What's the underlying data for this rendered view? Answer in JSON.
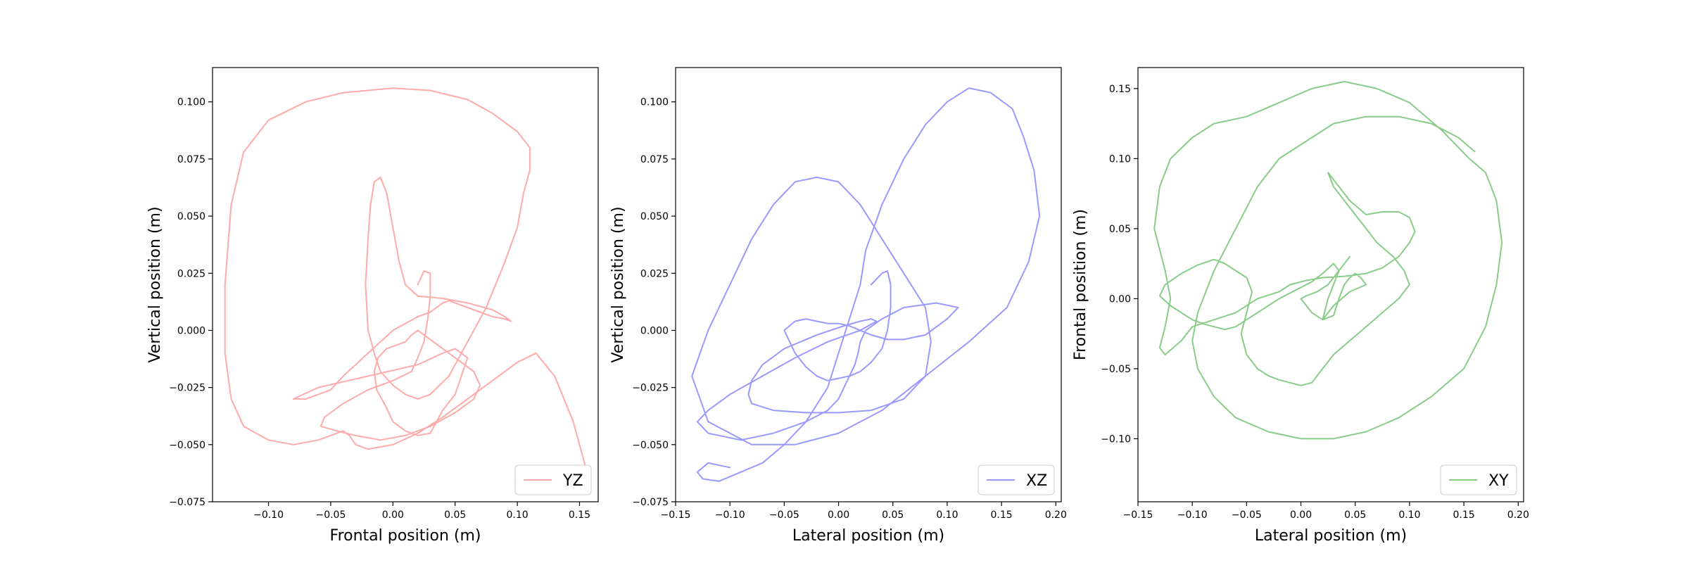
{
  "chart_data": [
    {
      "type": "line",
      "xlabel": "Frontal position (m)",
      "ylabel": "Vertical position  (m)",
      "xlim": [
        -0.145,
        0.165
      ],
      "ylim": [
        -0.075,
        0.115
      ],
      "xticks": [
        -0.1,
        -0.05,
        0.0,
        0.05,
        0.1,
        0.15
      ],
      "xtick_labels": [
        "−0.10",
        "−0.05",
        "0.00",
        "0.05",
        "0.10",
        "0.15"
      ],
      "yticks": [
        -0.075,
        -0.05,
        -0.025,
        0.0,
        0.025,
        0.05,
        0.075,
        0.1
      ],
      "ytick_labels": [
        "−0.075",
        "−0.050",
        "−0.025",
        "0.000",
        "0.025",
        "0.050",
        "0.075",
        "0.100"
      ],
      "legend": "lower right",
      "grid": false,
      "series": [
        {
          "name": "YZ",
          "color": "#ffaaaa",
          "x": [
            0.02,
            0.025,
            0.03,
            0.03,
            0.028,
            0.025,
            0.02,
            0.015,
            0.0,
            -0.02,
            -0.04,
            -0.055,
            -0.058,
            -0.045,
            -0.03,
            -0.01,
            0.01,
            0.03,
            0.05,
            0.065,
            0.07,
            0.065,
            0.05,
            0.035,
            0.025,
            0.02,
            0.015,
            0.01,
            -0.005,
            -0.012,
            -0.015,
            -0.013,
            -0.005,
            0.0,
            0.01,
            0.02,
            0.03,
            0.035,
            0.04,
            0.05,
            0.055,
            0.06,
            0.05,
            0.04,
            0.02,
            -0.02,
            -0.06,
            -0.08,
            -0.07,
            -0.05,
            -0.04,
            -0.03,
            -0.02,
            -0.01,
            0.0,
            0.01,
            0.02,
            0.03,
            0.035,
            0.04,
            0.045,
            0.05,
            0.06,
            0.07,
            0.08,
            0.09,
            0.095,
            0.09,
            0.08,
            0.06,
            0.04,
            0.02,
            0.01,
            0.005,
            0.0,
            -0.005,
            -0.01,
            -0.015,
            -0.018,
            -0.02,
            -0.022,
            -0.02,
            -0.015,
            -0.01,
            0.0,
            0.01,
            0.02,
            0.03,
            0.045,
            0.06,
            0.075,
            0.09,
            0.1,
            0.105,
            0.11,
            0.11,
            0.11,
            0.1,
            0.08,
            0.06,
            0.03,
            0.0,
            -0.04,
            -0.07,
            -0.1,
            -0.12,
            -0.13,
            -0.135,
            -0.135,
            -0.13,
            -0.12,
            -0.1,
            -0.08,
            -0.06,
            -0.045,
            -0.04,
            -0.035,
            -0.03,
            -0.02,
            0.0,
            0.02,
            0.04,
            0.06,
            0.08,
            0.1,
            0.115,
            0.13,
            0.145,
            0.155
          ],
          "y": [
            0.02,
            0.026,
            0.025,
            0.015,
            0.005,
            -0.005,
            -0.012,
            -0.018,
            -0.022,
            -0.026,
            -0.032,
            -0.038,
            -0.042,
            -0.044,
            -0.046,
            -0.048,
            -0.046,
            -0.042,
            -0.036,
            -0.03,
            -0.024,
            -0.018,
            -0.012,
            -0.006,
            -0.002,
            0.0,
            -0.002,
            -0.005,
            -0.008,
            -0.012,
            -0.018,
            -0.026,
            -0.034,
            -0.04,
            -0.044,
            -0.046,
            -0.045,
            -0.04,
            -0.035,
            -0.028,
            -0.02,
            -0.012,
            -0.008,
            -0.01,
            -0.015,
            -0.02,
            -0.025,
            -0.03,
            -0.03,
            -0.026,
            -0.02,
            -0.015,
            -0.01,
            -0.005,
            0.0,
            0.003,
            0.006,
            0.008,
            0.01,
            0.012,
            0.013,
            0.012,
            0.01,
            0.008,
            0.006,
            0.005,
            0.004,
            0.006,
            0.009,
            0.012,
            0.014,
            0.015,
            0.02,
            0.03,
            0.045,
            0.06,
            0.067,
            0.065,
            0.055,
            0.04,
            0.02,
            0.0,
            -0.01,
            -0.018,
            -0.024,
            -0.028,
            -0.03,
            -0.028,
            -0.02,
            -0.005,
            0.01,
            0.03,
            0.045,
            0.06,
            0.07,
            0.078,
            0.08,
            0.087,
            0.095,
            0.101,
            0.105,
            0.106,
            0.104,
            0.1,
            0.092,
            0.078,
            0.055,
            0.02,
            -0.01,
            -0.03,
            -0.042,
            -0.048,
            -0.05,
            -0.048,
            -0.045,
            -0.044,
            -0.046,
            -0.05,
            -0.052,
            -0.05,
            -0.045,
            -0.038,
            -0.03,
            -0.022,
            -0.014,
            -0.01,
            -0.02,
            -0.04,
            -0.06
          ]
        }
      ]
    },
    {
      "type": "line",
      "xlabel": "Lateral position (m)",
      "ylabel": "Vertical position (m)",
      "xlim": [
        -0.15,
        0.205
      ],
      "ylim": [
        -0.075,
        0.115
      ],
      "xticks": [
        -0.15,
        -0.1,
        -0.05,
        0.0,
        0.05,
        0.1,
        0.15,
        0.2
      ],
      "xtick_labels": [
        "−0.15",
        "−0.10",
        "−0.05",
        "0.00",
        "0.05",
        "0.10",
        "0.15",
        "0.20"
      ],
      "yticks": [
        -0.075,
        -0.05,
        -0.025,
        0.0,
        0.025,
        0.05,
        0.075,
        0.1
      ],
      "ytick_labels": [
        "−0.075",
        "−0.050",
        "−0.025",
        "0.000",
        "0.025",
        "0.050",
        "0.075",
        "0.100"
      ],
      "legend": "lower right",
      "grid": false,
      "series": [
        {
          "name": "XZ",
          "color": "#9999ff",
          "x": [
            0.03,
            0.04,
            0.045,
            0.048,
            0.048,
            0.045,
            0.04,
            0.03,
            0.02,
            0.01,
            0.0,
            -0.01,
            -0.02,
            -0.03,
            -0.04,
            -0.045,
            -0.05,
            -0.04,
            -0.03,
            -0.02,
            -0.01,
            0.0,
            0.01,
            0.02,
            0.03,
            0.045,
            0.06,
            0.08,
            0.1,
            0.11,
            0.09,
            0.06,
            0.04,
            0.025,
            0.02,
            0.018,
            0.015,
            0.01,
            0.005,
            0.0,
            -0.01,
            -0.03,
            -0.06,
            -0.09,
            -0.12,
            -0.13,
            -0.12,
            -0.1,
            -0.07,
            -0.04,
            -0.01,
            0.02,
            0.035,
            0.03,
            0.02,
            0.005,
            -0.02,
            -0.05,
            -0.07,
            -0.08,
            -0.083,
            -0.08,
            -0.06,
            -0.03,
            0.0,
            0.03,
            0.06,
            0.08,
            0.085,
            0.08,
            0.06,
            0.04,
            0.02,
            0.0,
            -0.02,
            -0.04,
            -0.06,
            -0.08,
            -0.1,
            -0.12,
            -0.135,
            -0.12,
            -0.08,
            -0.04,
            0.0,
            0.04,
            0.08,
            0.12,
            0.155,
            0.175,
            0.185,
            0.18,
            0.17,
            0.16,
            0.14,
            0.12,
            0.1,
            0.08,
            0.06,
            0.04,
            0.025,
            0.02,
            0.01,
            0.0,
            -0.01,
            -0.03,
            -0.05,
            -0.07,
            -0.09,
            -0.11,
            -0.125,
            -0.13,
            -0.12,
            -0.1
          ],
          "y": [
            0.02,
            0.025,
            0.026,
            0.02,
            0.01,
            0.0,
            -0.008,
            -0.014,
            -0.018,
            -0.02,
            -0.021,
            -0.022,
            -0.02,
            -0.016,
            -0.01,
            -0.005,
            0.0,
            0.004,
            0.005,
            0.004,
            0.003,
            0.003,
            0.002,
            0.0,
            -0.002,
            -0.004,
            -0.004,
            -0.002,
            0.005,
            0.01,
            0.012,
            0.01,
            0.005,
            0.0,
            -0.005,
            -0.01,
            -0.015,
            -0.02,
            -0.025,
            -0.03,
            -0.035,
            -0.04,
            -0.045,
            -0.048,
            -0.045,
            -0.04,
            -0.035,
            -0.028,
            -0.02,
            -0.012,
            -0.005,
            0.0,
            0.004,
            0.005,
            0.004,
            0.002,
            -0.002,
            -0.008,
            -0.015,
            -0.022,
            -0.028,
            -0.032,
            -0.035,
            -0.036,
            -0.036,
            -0.035,
            -0.03,
            -0.02,
            -0.005,
            0.01,
            0.025,
            0.04,
            0.055,
            0.065,
            0.067,
            0.065,
            0.055,
            0.04,
            0.02,
            0.0,
            -0.02,
            -0.04,
            -0.05,
            -0.05,
            -0.045,
            -0.035,
            -0.02,
            -0.005,
            0.01,
            0.03,
            0.05,
            0.07,
            0.085,
            0.097,
            0.104,
            0.106,
            0.1,
            0.09,
            0.075,
            0.055,
            0.035,
            0.02,
            0.005,
            -0.01,
            -0.025,
            -0.04,
            -0.05,
            -0.058,
            -0.062,
            -0.066,
            -0.065,
            -0.062,
            -0.058,
            -0.06
          ]
        }
      ]
    },
    {
      "type": "line",
      "xlabel": "Lateral position (m)",
      "ylabel": "Frontal position (m)",
      "xlim": [
        -0.15,
        0.205
      ],
      "ylim": [
        -0.145,
        0.165
      ],
      "xticks": [
        -0.15,
        -0.1,
        -0.05,
        0.0,
        0.05,
        0.1,
        0.15,
        0.2
      ],
      "xtick_labels": [
        "−0.15",
        "−0.10",
        "−0.05",
        "0.00",
        "0.05",
        "0.10",
        "0.15",
        "0.20"
      ],
      "yticks": [
        -0.1,
        -0.05,
        0.0,
        0.05,
        0.1,
        0.15
      ],
      "ytick_labels": [
        "−0.10",
        "−0.05",
        "0.00",
        "0.05",
        "0.10",
        "0.15"
      ],
      "legend": "lower right",
      "grid": false,
      "series": [
        {
          "name": "XY",
          "color": "#88cc88",
          "x": [
            0.045,
            0.035,
            0.025,
            0.015,
            0.005,
            0.0,
            0.01,
            0.02,
            0.03,
            0.035,
            0.04,
            0.045,
            0.05,
            0.055,
            0.06,
            0.045,
            0.03,
            0.02,
            0.025,
            0.03,
            0.035,
            0.03,
            0.02,
            0.01,
            0.0,
            -0.01,
            -0.02,
            -0.03,
            -0.04,
            -0.05,
            -0.06,
            -0.07,
            -0.08,
            -0.09,
            -0.1,
            -0.11,
            -0.12,
            -0.13,
            -0.125,
            -0.11,
            -0.095,
            -0.08,
            -0.07,
            -0.06,
            -0.05,
            -0.045,
            -0.05,
            -0.055,
            -0.05,
            -0.04,
            -0.03,
            -0.02,
            -0.01,
            0.0,
            0.01,
            0.02,
            0.03,
            0.045,
            0.06,
            0.075,
            0.09,
            0.1,
            0.095,
            0.085,
            0.07,
            0.06,
            0.05,
            0.04,
            0.03,
            0.025,
            0.03,
            0.045,
            0.06,
            0.075,
            0.09,
            0.1,
            0.105,
            0.1,
            0.09,
            0.075,
            0.06,
            0.04,
            0.02,
            0.005,
            -0.01,
            -0.02,
            -0.04,
            -0.06,
            -0.08,
            -0.1,
            -0.11,
            -0.125,
            -0.13,
            -0.125,
            -0.12,
            -0.125,
            -0.135,
            -0.13,
            -0.12,
            -0.1,
            -0.08,
            -0.05,
            -0.02,
            0.01,
            0.04,
            0.07,
            0.1,
            0.13,
            0.155,
            0.17,
            0.18,
            0.185,
            0.18,
            0.17,
            0.15,
            0.12,
            0.09,
            0.06,
            0.03,
            0.0,
            -0.03,
            -0.06,
            -0.08,
            -0.095,
            -0.1,
            -0.095,
            -0.08,
            -0.06,
            -0.04,
            -0.02,
            0.0,
            0.03,
            0.06,
            0.09,
            0.12,
            0.145,
            0.16
          ],
          "y": [
            0.03,
            0.02,
            0.01,
            0.005,
            0.002,
            0.0,
            -0.01,
            -0.015,
            -0.012,
            0.0,
            0.01,
            0.015,
            0.018,
            0.015,
            0.01,
            0.005,
            -0.005,
            -0.015,
            0.0,
            0.01,
            0.02,
            0.025,
            0.018,
            0.012,
            0.008,
            0.004,
            0.0,
            -0.005,
            -0.01,
            -0.015,
            -0.02,
            -0.022,
            -0.02,
            -0.018,
            -0.015,
            -0.01,
            -0.005,
            0.002,
            0.01,
            0.018,
            0.024,
            0.028,
            0.025,
            0.02,
            0.015,
            0.005,
            -0.01,
            -0.025,
            -0.04,
            -0.05,
            -0.055,
            -0.058,
            -0.06,
            -0.062,
            -0.06,
            -0.05,
            -0.04,
            -0.03,
            -0.02,
            -0.01,
            0.0,
            0.01,
            0.02,
            0.03,
            0.04,
            0.05,
            0.06,
            0.07,
            0.08,
            0.09,
            0.085,
            0.07,
            0.06,
            0.062,
            0.062,
            0.058,
            0.048,
            0.04,
            0.03,
            0.022,
            0.018,
            0.016,
            0.015,
            0.013,
            0.01,
            0.005,
            0.0,
            -0.01,
            -0.015,
            -0.02,
            -0.03,
            -0.04,
            -0.035,
            -0.02,
            0.0,
            0.02,
            0.05,
            0.08,
            0.1,
            0.115,
            0.125,
            0.13,
            0.14,
            0.15,
            0.155,
            0.15,
            0.14,
            0.12,
            0.1,
            0.09,
            0.07,
            0.04,
            0.01,
            -0.02,
            -0.05,
            -0.07,
            -0.085,
            -0.095,
            -0.1,
            -0.1,
            -0.095,
            -0.085,
            -0.07,
            -0.05,
            -0.03,
            -0.01,
            0.02,
            0.05,
            0.08,
            0.1,
            0.11,
            0.125,
            0.13,
            0.13,
            0.125,
            0.115,
            0.105
          ]
        }
      ]
    }
  ]
}
